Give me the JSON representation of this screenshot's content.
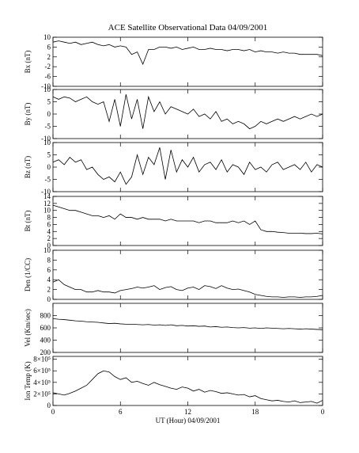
{
  "chart_data": [
    {
      "type": "line",
      "title": "ACE Satellite Observational Data  04/09/2001",
      "ylabel": "Bx (nT)",
      "color": "#000000",
      "x": [
        0,
        0.5,
        1,
        1.5,
        2,
        2.5,
        3,
        3.5,
        4,
        4.5,
        5,
        5.5,
        6,
        6.5,
        7,
        7.5,
        8,
        8.5,
        9,
        9.5,
        10,
        10.5,
        11,
        11.5,
        12,
        12.5,
        13,
        13.5,
        14,
        14.5,
        15,
        15.5,
        16,
        16.5,
        17,
        17.5,
        18,
        18.5,
        19,
        19.5,
        20,
        20.5,
        21,
        21.5,
        22,
        22.5,
        23,
        23.5,
        24
      ],
      "values": [
        8,
        8.5,
        8,
        7.5,
        8,
        7,
        7.5,
        8,
        7,
        6.5,
        7,
        6,
        6.5,
        6,
        3,
        4,
        -1,
        5,
        5,
        6,
        6,
        5.5,
        6,
        5,
        5.5,
        6,
        5,
        5,
        5.5,
        5,
        5,
        4.5,
        5,
        5,
        4.5,
        5,
        4,
        4.5,
        4,
        4,
        3.5,
        4,
        3.5,
        3.5,
        3,
        3,
        3,
        3,
        2.5
      ],
      "xlim": [
        0,
        24
      ],
      "xticks": [
        0,
        6,
        12,
        18,
        24
      ],
      "ylim": [
        -10,
        10
      ],
      "yticks": [
        10,
        6,
        2,
        -2,
        -6,
        -10
      ]
    },
    {
      "type": "line",
      "ylabel": "By (nT)",
      "color": "#000000",
      "x": [
        0,
        0.5,
        1,
        1.5,
        2,
        2.5,
        3,
        3.5,
        4,
        4.5,
        5,
        5.5,
        6,
        6.5,
        7,
        7.5,
        8,
        8.5,
        9,
        9.5,
        10,
        10.5,
        11,
        11.5,
        12,
        12.5,
        13,
        13.5,
        14,
        14.5,
        15,
        15.5,
        16,
        16.5,
        17,
        17.5,
        18,
        18.5,
        19,
        19.5,
        20,
        20.5,
        21,
        21.5,
        22,
        22.5,
        23,
        23.5,
        24
      ],
      "values": [
        7,
        6,
        7,
        6.5,
        5,
        6,
        7,
        5,
        4,
        5,
        -3,
        6,
        -5,
        8,
        -2,
        6,
        -6,
        7,
        1,
        5,
        0,
        3,
        2,
        1,
        0,
        2,
        -1,
        0,
        -2,
        1,
        -3,
        -2,
        -4,
        -3,
        -4,
        -6,
        -5,
        -3,
        -4,
        -3,
        -2,
        -3,
        -2,
        -1,
        -2,
        -1,
        0,
        -1,
        0
      ],
      "xlim": [
        0,
        24
      ],
      "xticks": [
        0,
        6,
        12,
        18,
        24
      ],
      "ylim": [
        -10,
        10
      ],
      "yticks": [
        -10,
        -5,
        0,
        5,
        10
      ]
    },
    {
      "type": "line",
      "ylabel": "Bz (nT)",
      "color": "#000000",
      "x": [
        0,
        0.5,
        1,
        1.5,
        2,
        2.5,
        3,
        3.5,
        4,
        4.5,
        5,
        5.5,
        6,
        6.5,
        7,
        7.5,
        8,
        8.5,
        9,
        9.5,
        10,
        10.5,
        11,
        11.5,
        12,
        12.5,
        13,
        13.5,
        14,
        14.5,
        15,
        15.5,
        16,
        16.5,
        17,
        17.5,
        18,
        18.5,
        19,
        19.5,
        20,
        20.5,
        21,
        21.5,
        22,
        22.5,
        23,
        23.5,
        24
      ],
      "values": [
        2,
        3,
        1,
        4,
        2,
        3,
        -1,
        0,
        -3,
        -5,
        -4,
        -6,
        -2,
        -7,
        -4,
        5,
        -3,
        4,
        1,
        8,
        -5,
        7,
        -2,
        3,
        0,
        4,
        -2,
        1,
        2,
        -1,
        3,
        -2,
        1,
        0,
        -3,
        2,
        -1,
        0,
        -2,
        1,
        2,
        -1,
        0,
        1,
        -1,
        2,
        -2,
        1,
        0
      ],
      "xlim": [
        0,
        24
      ],
      "xticks": [
        0,
        6,
        12,
        18,
        24
      ],
      "ylim": [
        -10,
        10
      ],
      "yticks": [
        -10,
        -5,
        0,
        5,
        10
      ]
    },
    {
      "type": "line",
      "ylabel": "Bt (nT)",
      "color": "#000000",
      "x": [
        0,
        0.5,
        1,
        1.5,
        2,
        2.5,
        3,
        3.5,
        4,
        4.5,
        5,
        5.5,
        6,
        6.5,
        7,
        7.5,
        8,
        8.5,
        9,
        9.5,
        10,
        10.5,
        11,
        11.5,
        12,
        12.5,
        13,
        13.5,
        14,
        14.5,
        15,
        15.5,
        16,
        16.5,
        17,
        17.5,
        18,
        18.5,
        19,
        19.5,
        20,
        20.5,
        21,
        21.5,
        22,
        22.5,
        23,
        23.5,
        24
      ],
      "values": [
        11.5,
        11,
        10.5,
        10,
        10,
        9.5,
        9,
        8.5,
        8.5,
        8,
        8.5,
        7.5,
        9,
        8,
        8,
        7.5,
        8,
        7.5,
        7.5,
        7.5,
        7,
        7.5,
        7,
        7,
        7,
        7,
        6.5,
        7,
        7,
        6.5,
        6.5,
        6.5,
        7,
        6.5,
        7,
        6,
        7,
        4.5,
        4,
        4,
        3.8,
        3.7,
        3.5,
        3.5,
        3.5,
        3.4,
        3.4,
        3.5,
        3.3
      ],
      "xlim": [
        0,
        24
      ],
      "xticks": [
        0,
        6,
        12,
        18,
        24
      ],
      "ylim": [
        0,
        14
      ],
      "yticks": [
        0,
        2,
        4,
        6,
        8,
        10,
        12,
        14
      ]
    },
    {
      "type": "line",
      "ylabel": "Den (1/CC)",
      "color": "#000000",
      "x": [
        0,
        0.5,
        1,
        1.5,
        2,
        2.5,
        3,
        3.5,
        4,
        4.5,
        5,
        5.5,
        6,
        6.5,
        7,
        7.5,
        8,
        8.5,
        9,
        9.5,
        10,
        10.5,
        11,
        11.5,
        12,
        12.5,
        13,
        13.5,
        14,
        14.5,
        15,
        15.5,
        16,
        16.5,
        17,
        17.5,
        18,
        18.5,
        19,
        19.5,
        20,
        20.5,
        21,
        21.5,
        22,
        22.5,
        23,
        23.5,
        24
      ],
      "values": [
        3.5,
        4,
        3,
        2.5,
        2,
        2,
        1.5,
        1.5,
        1.8,
        1.5,
        1.5,
        1.3,
        1.8,
        2,
        2.2,
        2.5,
        2.3,
        2.5,
        2.8,
        2,
        2.4,
        2.6,
        2,
        1.8,
        2.3,
        2.5,
        2,
        2.8,
        2.6,
        2.2,
        2.8,
        2.3,
        2,
        2.1,
        1.8,
        1.5,
        1,
        0.8,
        0.6,
        0.5,
        0.5,
        0.4,
        0.5,
        0.5,
        0.4,
        0.5,
        0.5,
        0.6,
        0.8
      ],
      "xlim": [
        0,
        24
      ],
      "xticks": [
        0,
        6,
        12,
        18,
        24
      ],
      "ylim": [
        0,
        10
      ],
      "yticks": [
        0,
        2,
        4,
        6,
        8,
        10
      ]
    },
    {
      "type": "line",
      "ylabel": "Vel (Km/sec)",
      "color": "#000000",
      "x": [
        0,
        0.5,
        1,
        1.5,
        2,
        2.5,
        3,
        3.5,
        4,
        4.5,
        5,
        5.5,
        6,
        6.5,
        7,
        7.5,
        8,
        8.5,
        9,
        9.5,
        10,
        10.5,
        11,
        11.5,
        12,
        12.5,
        13,
        13.5,
        14,
        14.5,
        15,
        15.5,
        16,
        16.5,
        17,
        17.5,
        18,
        18.5,
        19,
        19.5,
        20,
        20.5,
        21,
        21.5,
        22,
        22.5,
        23,
        23.5,
        24
      ],
      "values": [
        750,
        740,
        735,
        725,
        715,
        710,
        700,
        695,
        690,
        680,
        670,
        675,
        665,
        660,
        660,
        655,
        650,
        655,
        645,
        650,
        640,
        650,
        635,
        640,
        630,
        635,
        625,
        630,
        615,
        620,
        610,
        615,
        605,
        600,
        605,
        595,
        600,
        590,
        600,
        595,
        590,
        585,
        590,
        585,
        580,
        585,
        580,
        575,
        570
      ],
      "xlim": [
        0,
        24
      ],
      "xticks": [
        0,
        6,
        12,
        18,
        24
      ],
      "ylim": [
        200,
        1000
      ],
      "yticks": [
        200,
        400,
        600,
        800
      ]
    },
    {
      "type": "line",
      "ylabel": "Ion Temp (K)",
      "xlabel": "UT (Hour)  04/09/2001",
      "color": "#000000",
      "x": [
        0,
        0.5,
        1,
        1.5,
        2,
        2.5,
        3,
        3.5,
        4,
        4.5,
        5,
        5.5,
        6,
        6.5,
        7,
        7.5,
        8,
        8.5,
        9,
        9.5,
        10,
        10.5,
        11,
        11.5,
        12,
        12.5,
        13,
        13.5,
        14,
        14.5,
        15,
        15.5,
        16,
        16.5,
        17,
        17.5,
        18,
        18.5,
        19,
        19.5,
        20,
        20.5,
        21,
        21.5,
        22,
        22.5,
        23,
        23.5,
        24
      ],
      "values": [
        220000,
        200000,
        180000,
        210000,
        250000,
        300000,
        350000,
        450000,
        550000,
        600000,
        580000,
        500000,
        450000,
        480000,
        400000,
        420000,
        380000,
        350000,
        400000,
        360000,
        330000,
        300000,
        280000,
        320000,
        300000,
        250000,
        280000,
        230000,
        260000,
        240000,
        210000,
        220000,
        200000,
        180000,
        190000,
        150000,
        170000,
        120000,
        100000,
        80000,
        90000,
        70000,
        60000,
        80000,
        50000,
        60000,
        70000,
        40000,
        90000
      ],
      "xlim": [
        0,
        24
      ],
      "xticks": [
        0,
        6,
        12,
        18,
        {
          "value": 24,
          "label": "0"
        }
      ],
      "ylim": [
        0,
        850000
      ],
      "yticks": [
        0,
        {
          "value": 200000,
          "label": "2×10⁵"
        },
        {
          "value": 400000,
          "label": "4×10⁵"
        },
        {
          "value": 600000,
          "label": "6×10⁵"
        },
        {
          "value": 800000,
          "label": "8×10⁵"
        }
      ]
    }
  ]
}
